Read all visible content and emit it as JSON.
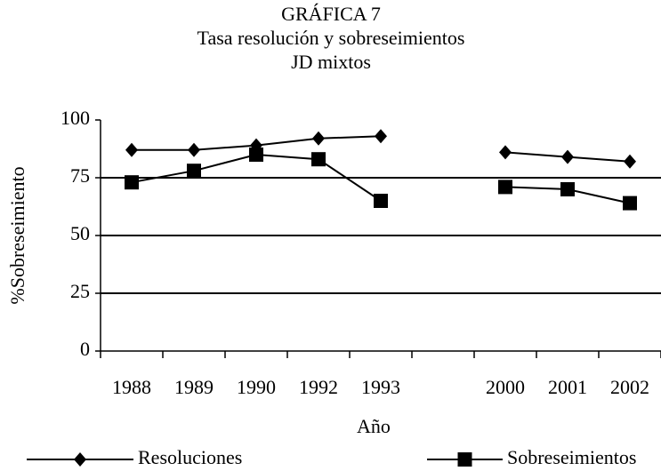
{
  "chart_data": {
    "type": "line",
    "title": "GRÁFICA 7",
    "subtitle": [
      "Tasa resolución y sobreseimientos",
      "JD mixtos"
    ],
    "y_label": "%Sobreseimiento",
    "x_label": "Año",
    "categories": [
      "1988",
      "1989",
      "1990",
      "1992",
      "1993",
      null,
      "2000",
      "2001",
      "2002"
    ],
    "series": [
      {
        "name": "Resoluciones",
        "color": "#000000",
        "marker": "diamond",
        "values": [
          87,
          87,
          89,
          92,
          93,
          null,
          86,
          84,
          82
        ]
      },
      {
        "name": "Sobreseimientos",
        "color": "#000000",
        "marker": "square",
        "values": [
          73,
          78,
          85,
          83,
          65,
          null,
          71,
          70,
          64
        ]
      }
    ],
    "ylim": [
      0,
      100
    ],
    "yticks": [
      0,
      25,
      50,
      75,
      100
    ],
    "grid": true,
    "legend": "bottom"
  }
}
